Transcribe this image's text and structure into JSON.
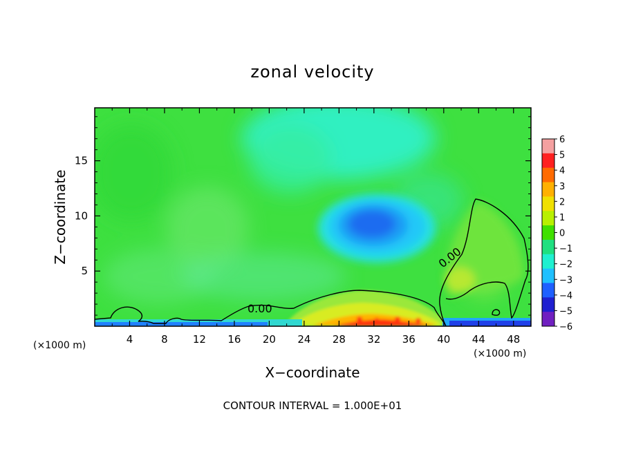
{
  "chart_data": {
    "type": "heatmap",
    "title": "zonal velocity",
    "xlabel": "X−coordinate",
    "ylabel": "Z−coordinate",
    "x_unit": "(×1000 m)",
    "x_unit_right": "(×1000 m)",
    "xlim": [
      0,
      50
    ],
    "ylim": [
      0,
      19.8
    ],
    "x_ticks": [
      4,
      8,
      12,
      16,
      20,
      24,
      28,
      32,
      36,
      40,
      44,
      48
    ],
    "y_ticks": [
      5,
      10,
      15
    ],
    "colorbar": {
      "range": [
        -6,
        6
      ],
      "ticks": [
        6,
        5,
        4,
        3,
        2,
        1,
        0,
        -1,
        -2,
        -3,
        -4,
        -5,
        -6
      ],
      "tick_labels": [
        "6",
        "5",
        "4",
        "3",
        "2",
        "1",
        "0",
        "−1",
        "−2",
        "−3",
        "−4",
        "−5",
        "−6"
      ],
      "colors": [
        "#f4a0a0",
        "#ff2020",
        "#ff6a00",
        "#ffb000",
        "#f0e000",
        "#b8f000",
        "#40e000",
        "#20e080",
        "#20f0d0",
        "#20c0ff",
        "#2060ff",
        "#2020d0",
        "#7020c0"
      ]
    },
    "contour_labels": [
      "0.00",
      "0.00"
    ],
    "field_features": [
      {
        "feature": "background",
        "x": 25,
        "z": 10,
        "value": 0.3
      },
      {
        "feature": "negative core aloft",
        "x": 32,
        "z": 9.5,
        "value": -3.2
      },
      {
        "feature": "weak negative band aloft",
        "x": 28,
        "z": 17,
        "value": -1.6
      },
      {
        "feature": "positive lobe",
        "x": 44,
        "z": 7,
        "value": 1.2
      },
      {
        "feature": "strong positive near surface",
        "x": 32,
        "z": 0.5,
        "value": 5.2
      },
      {
        "feature": "negative surface layer",
        "x": 46,
        "z": 0.3,
        "value": -4.5
      }
    ],
    "footer": "CONTOUR INTERVAL = 1.000E+01"
  }
}
